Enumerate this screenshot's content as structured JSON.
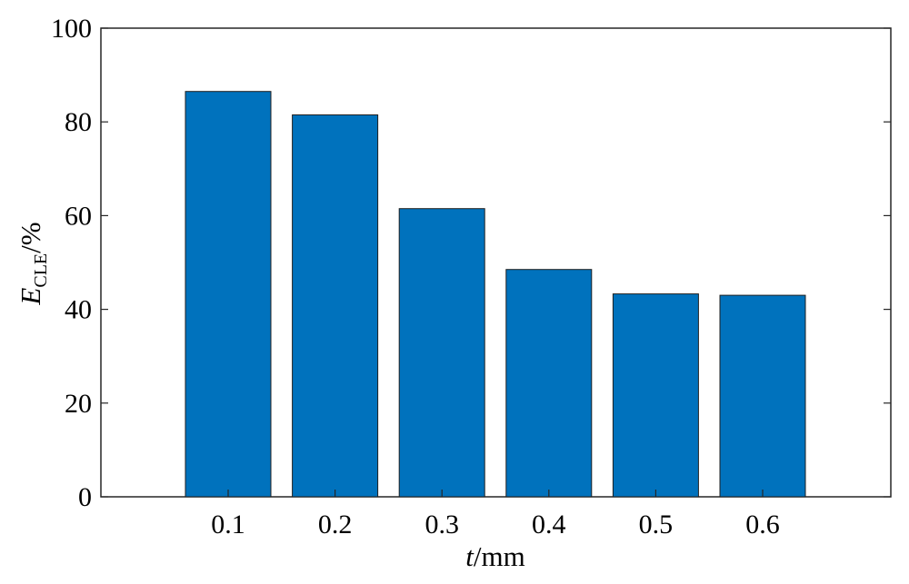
{
  "colors": {
    "bar_fill": "#0072BD",
    "bar_stroke": "#1F1F1F",
    "axis": "#262626",
    "background": "#FFFFFF"
  },
  "chart_data": {
    "type": "bar",
    "title": "",
    "categories": [
      "0.1",
      "0.2",
      "0.3",
      "0.4",
      "0.5",
      "0.6"
    ],
    "values": [
      86.5,
      81.5,
      61.5,
      48.5,
      43.3,
      43.0
    ],
    "xlabel": {
      "italic": "t",
      "rest": "/mm"
    },
    "ylabel": {
      "main": "E",
      "subscript": "CLE",
      "rest": "/%"
    },
    "ylim": [
      0,
      100
    ],
    "yticks": [
      "0",
      "20",
      "40",
      "60",
      "80",
      "100"
    ],
    "grid": false,
    "legend": "none"
  }
}
